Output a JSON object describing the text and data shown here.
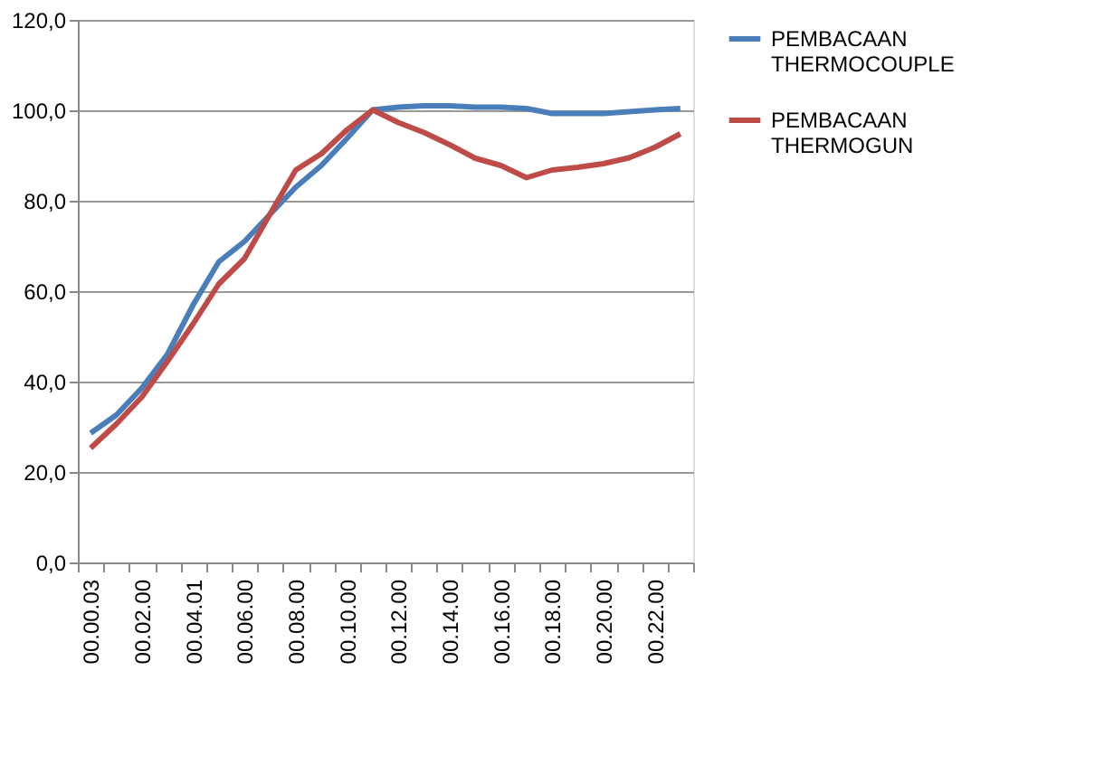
{
  "chart_data": {
    "type": "line",
    "categories": [
      "00.00.03",
      null,
      "00.02.00",
      null,
      "00.04.01",
      null,
      "00.06.00",
      null,
      "00.08.00",
      null,
      "00.10.00",
      null,
      "00.12.00",
      null,
      "00.14.00",
      null,
      "00.16.00",
      null,
      "00.18.00",
      null,
      "00.20.00",
      null,
      "00.22.00",
      null
    ],
    "series": [
      {
        "name": "PEMBACAAN THERMOCOUPLE",
        "color": "#4a7ebb",
        "values": [
          28.6,
          32.6,
          38.6,
          46.1,
          57,
          66.5,
          71,
          77,
          83,
          87.8,
          93.8,
          100.1,
          100.7,
          101,
          101,
          100.7,
          100.7,
          100.4,
          99.3,
          99.3,
          99.3,
          99.7,
          100.1,
          100.4
        ]
      },
      {
        "name": "PEMBACAAN THERMOGUN",
        "color": "#be4b48",
        "values": [
          25.3,
          30.6,
          36.6,
          44.5,
          52.8,
          61.6,
          67.2,
          77.1,
          86.8,
          90.4,
          95.7,
          100.1,
          97.3,
          95.1,
          92.4,
          89.4,
          87.8,
          85.1,
          86.8,
          87.4,
          88.2,
          89.5,
          91.8,
          94.8
        ]
      }
    ],
    "ylim": [
      0,
      120
    ],
    "yticks": [
      {
        "value": 0,
        "label": "0,0"
      },
      {
        "value": 20,
        "label": "20,0"
      },
      {
        "value": 40,
        "label": "40,0"
      },
      {
        "value": 60,
        "label": "60,0"
      },
      {
        "value": 80,
        "label": "80,0"
      },
      {
        "value": 100,
        "label": "100,0"
      },
      {
        "value": 120,
        "label": "120,0"
      }
    ],
    "grid": "y",
    "legend": "right",
    "marker": "none",
    "line_style": "solid"
  }
}
